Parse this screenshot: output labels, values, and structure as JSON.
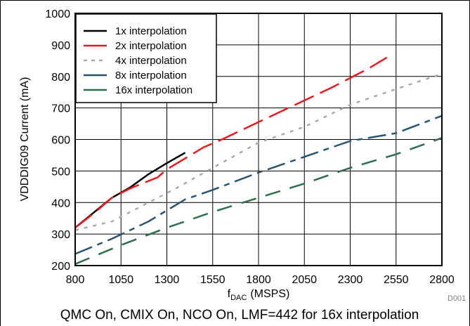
{
  "chart_data": {
    "type": "line",
    "xlabel": "f",
    "xlabel_sub": "DAC",
    "xlabel_unit": "(MSPS)",
    "ylabel": "VDDDIG09 Current (mA)",
    "xlim": [
      800,
      2800
    ],
    "ylim": [
      200,
      1000
    ],
    "xticks": [
      800,
      1050,
      1300,
      1550,
      1800,
      2050,
      2300,
      2550,
      2800
    ],
    "yticks": [
      200,
      300,
      400,
      500,
      600,
      700,
      800,
      900,
      1000
    ],
    "grid": true,
    "legend_position": "top-left",
    "series": [
      {
        "name": "1x interpolation",
        "color": "#000000",
        "dash": "solid",
        "points": [
          [
            800,
            320
          ],
          [
            1000,
            415
          ],
          [
            1100,
            448
          ],
          [
            1200,
            490
          ],
          [
            1300,
            525
          ],
          [
            1400,
            558
          ]
        ]
      },
      {
        "name": "2x interpolation",
        "color": "#e8191e",
        "dash": "long-dash",
        "points": [
          [
            800,
            320
          ],
          [
            900,
            365
          ],
          [
            1000,
            415
          ],
          [
            1100,
            445
          ],
          [
            1250,
            480
          ],
          [
            1300,
            505
          ],
          [
            1400,
            540
          ],
          [
            1500,
            575
          ],
          [
            1600,
            600
          ],
          [
            1800,
            655
          ],
          [
            2000,
            710
          ],
          [
            2200,
            765
          ],
          [
            2300,
            795
          ],
          [
            2400,
            825
          ],
          [
            2500,
            860
          ]
        ]
      },
      {
        "name": "4x interpolation",
        "color": "#aaaaaa",
        "dash": "dot",
        "points": [
          [
            800,
            312
          ],
          [
            1000,
            340
          ],
          [
            1200,
            400
          ],
          [
            1350,
            445
          ],
          [
            1550,
            510
          ],
          [
            1800,
            590
          ],
          [
            2050,
            640
          ],
          [
            2300,
            710
          ],
          [
            2550,
            760
          ],
          [
            2800,
            808
          ]
        ]
      },
      {
        "name": "8x interpolation",
        "color": "#2b5470",
        "dash": "dash-dot",
        "points": [
          [
            800,
            237
          ],
          [
            1000,
            285
          ],
          [
            1200,
            340
          ],
          [
            1400,
            410
          ],
          [
            1550,
            440
          ],
          [
            1800,
            495
          ],
          [
            2050,
            545
          ],
          [
            2300,
            595
          ],
          [
            2550,
            620
          ],
          [
            2800,
            675
          ]
        ]
      },
      {
        "name": "16x interpolation",
        "color": "#2e6e4d",
        "dash": "dash",
        "points": [
          [
            800,
            205
          ],
          [
            1050,
            265
          ],
          [
            1300,
            320
          ],
          [
            1550,
            370
          ],
          [
            1800,
            415
          ],
          [
            2050,
            460
          ],
          [
            2300,
            510
          ],
          [
            2550,
            553
          ],
          [
            2800,
            605
          ]
        ]
      }
    ],
    "annotations": [
      "D001"
    ]
  },
  "caption": "QMC On, CMIX On, NCO On, LMF=442 for 16x interpolation"
}
